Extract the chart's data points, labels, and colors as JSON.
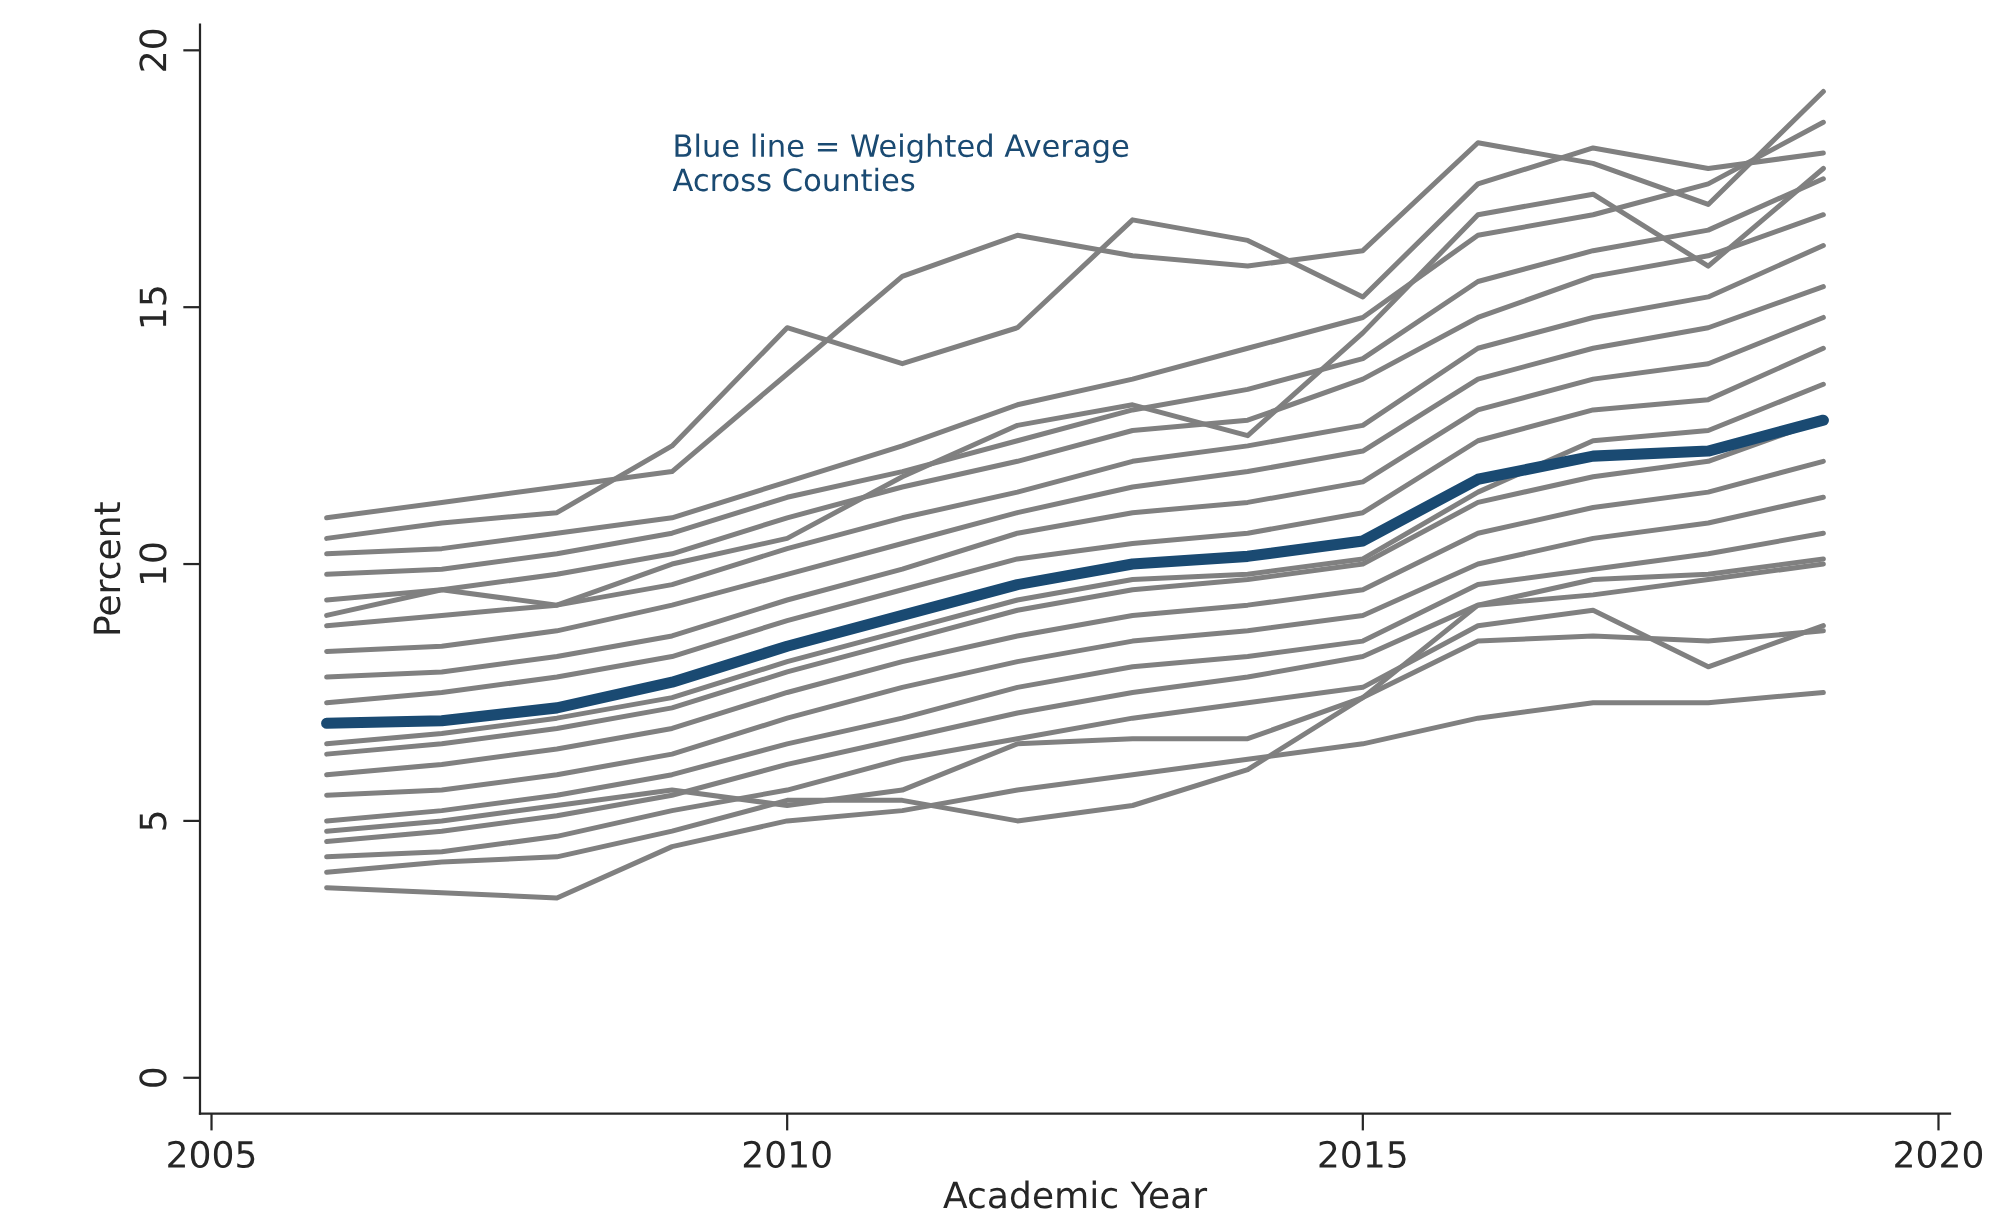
{
  "chart_data": {
    "type": "line",
    "xlabel": "Academic Year",
    "ylabel": "Percent",
    "annotations": [
      "Blue line = Weighted Average\nAcross Counties"
    ],
    "x": [
      2006,
      2007,
      2008,
      2009,
      2010,
      2011,
      2012,
      2013,
      2014,
      2015,
      2016,
      2017,
      2018,
      2019
    ],
    "xlim": [
      2004.9,
      2020.1
    ],
    "xticks": [
      2005,
      2010,
      2015,
      2020
    ],
    "ylim": [
      -0.7,
      20.5
    ],
    "yticks": [
      0,
      5,
      10,
      15,
      20
    ],
    "grid": false,
    "marker": "none",
    "line_style": "solid",
    "series": [
      {
        "color": "#808080",
        "values": [
          10.9,
          11.2,
          11.5,
          11.8,
          13.7,
          15.6,
          16.4,
          16.0,
          15.8,
          16.1,
          18.2,
          17.8,
          17.0,
          19.2
        ]
      },
      {
        "color": "#808080",
        "values": [
          10.5,
          10.8,
          11.0,
          12.3,
          14.6,
          13.9,
          14.6,
          16.7,
          16.3,
          15.2,
          17.4,
          18.1,
          17.7,
          18.0
        ]
      },
      {
        "color": "#808080",
        "values": [
          10.2,
          10.3,
          10.6,
          10.9,
          11.6,
          12.3,
          13.1,
          13.6,
          14.2,
          14.8,
          16.4,
          16.8,
          17.4,
          18.6
        ]
      },
      {
        "color": "#808080",
        "values": [
          9.8,
          9.9,
          10.2,
          10.6,
          11.3,
          11.8,
          12.4,
          13.0,
          13.4,
          14.0,
          15.5,
          16.1,
          16.5,
          17.5
        ]
      },
      {
        "color": "#808080",
        "values": [
          9.3,
          9.5,
          9.8,
          10.2,
          10.9,
          11.5,
          12.0,
          12.6,
          12.8,
          13.6,
          14.8,
          15.6,
          16.0,
          16.8
        ]
      },
      {
        "color": "#808080",
        "values": [
          8.8,
          9.0,
          9.2,
          9.6,
          10.3,
          10.9,
          11.4,
          12.0,
          12.3,
          12.7,
          14.2,
          14.8,
          15.2,
          16.2
        ]
      },
      {
        "color": "#808080",
        "values": [
          8.3,
          8.4,
          8.7,
          9.2,
          9.8,
          10.4,
          11.0,
          11.5,
          11.8,
          12.2,
          13.6,
          14.2,
          14.6,
          15.4
        ]
      },
      {
        "color": "#808080",
        "values": [
          7.8,
          7.9,
          8.2,
          8.6,
          9.3,
          9.9,
          10.6,
          11.0,
          11.2,
          11.6,
          13.0,
          13.6,
          13.9,
          14.8
        ]
      },
      {
        "color": "#808080",
        "values": [
          7.3,
          7.5,
          7.8,
          8.2,
          8.9,
          9.5,
          10.1,
          10.4,
          10.6,
          11.0,
          12.4,
          13.0,
          13.2,
          14.2
        ]
      },
      {
        "color": "#808080",
        "values": [
          6.5,
          6.7,
          7.0,
          7.4,
          8.1,
          8.7,
          9.3,
          9.7,
          9.8,
          10.1,
          11.4,
          12.4,
          12.6,
          13.5
        ]
      },
      {
        "color": "#808080",
        "values": [
          6.3,
          6.5,
          6.8,
          7.2,
          7.9,
          8.5,
          9.1,
          9.5,
          9.7,
          10.0,
          11.2,
          11.7,
          12.0,
          12.8
        ]
      },
      {
        "color": "#808080",
        "values": [
          5.9,
          6.1,
          6.4,
          6.8,
          7.5,
          8.1,
          8.6,
          9.0,
          9.2,
          9.5,
          10.6,
          11.1,
          11.4,
          12.0
        ]
      },
      {
        "color": "#808080",
        "values": [
          5.5,
          5.6,
          5.9,
          6.3,
          7.0,
          7.6,
          8.1,
          8.5,
          8.7,
          9.0,
          10.0,
          10.5,
          10.8,
          11.3
        ]
      },
      {
        "color": "#808080",
        "values": [
          5.0,
          5.2,
          5.5,
          5.9,
          6.5,
          7.0,
          7.6,
          8.0,
          8.2,
          8.5,
          9.6,
          9.9,
          10.2,
          10.6
        ]
      },
      {
        "color": "#808080",
        "values": [
          4.6,
          4.8,
          5.1,
          5.5,
          6.1,
          6.6,
          7.1,
          7.5,
          7.8,
          8.2,
          9.2,
          9.4,
          9.7,
          10.0
        ]
      },
      {
        "color": "#808080",
        "values": [
          4.3,
          4.4,
          4.7,
          5.2,
          5.6,
          6.2,
          6.6,
          7.0,
          7.3,
          7.6,
          8.8,
          9.1,
          8.0,
          8.8
        ]
      },
      {
        "color": "#808080",
        "values": [
          3.7,
          3.6,
          3.5,
          4.5,
          5.0,
          5.2,
          5.6,
          5.9,
          6.2,
          6.5,
          7.0,
          7.3,
          7.3,
          7.5
        ]
      },
      {
        "color": "#808080",
        "values": [
          4.0,
          4.2,
          4.3,
          4.8,
          5.4,
          5.4,
          5.0,
          5.3,
          6.0,
          7.4,
          8.5,
          8.6,
          8.5,
          8.7
        ]
      },
      {
        "color": "#808080",
        "values": [
          4.8,
          5.0,
          5.3,
          5.6,
          5.3,
          5.6,
          6.5,
          6.6,
          6.6,
          7.4,
          9.2,
          9.7,
          9.8,
          10.1
        ]
      },
      {
        "color": "#808080",
        "values": [
          9.0,
          9.5,
          9.2,
          10.0,
          10.5,
          11.7,
          12.7,
          13.1,
          12.5,
          14.5,
          16.8,
          17.2,
          15.8,
          17.7
        ]
      },
      {
        "color": "#1a4a72",
        "values": [
          6.9,
          6.95,
          7.2,
          7.7,
          8.4,
          9.0,
          9.6,
          10.0,
          10.15,
          10.45,
          11.65,
          12.1,
          12.2,
          12.8
        ]
      }
    ]
  }
}
